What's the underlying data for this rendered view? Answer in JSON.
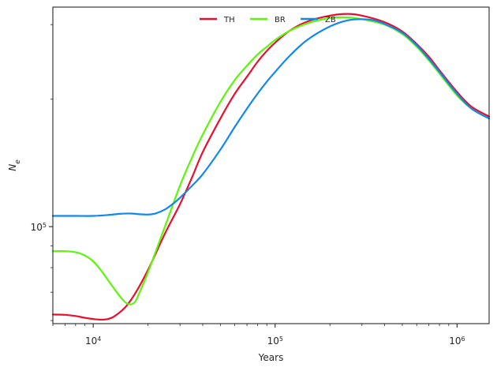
{
  "chart_data": {
    "type": "line",
    "xlabel": "Years",
    "ylabel": "N",
    "ylabel_subscript": "e",
    "xscale": "log",
    "yscale": "log",
    "xlim": [
      6000,
      1500000
    ],
    "ylim": [
      59000,
      330000
    ],
    "grid": false,
    "legend": "top-center",
    "x_ticks": [
      {
        "value": 10000,
        "base": "10",
        "exp": "4"
      },
      {
        "value": 100000,
        "base": "10",
        "exp": "5"
      },
      {
        "value": 1000000,
        "base": "10",
        "exp": "6"
      }
    ],
    "y_ticks": [
      {
        "value": 100000,
        "base": "10",
        "exp": "5"
      }
    ],
    "series": [
      {
        "name": "TH",
        "color": "#e8102e",
        "x": [
          6000,
          7000,
          8000,
          9000,
          10000,
          11000,
          12000,
          13000,
          15000,
          17000,
          20000,
          25000,
          30000,
          35000,
          40000,
          50000,
          60000,
          70000,
          80000,
          90000,
          100000,
          120000,
          150000,
          200000,
          250000,
          300000,
          400000,
          500000,
          600000,
          700000,
          800000,
          1000000,
          1200000,
          1500000
        ],
        "y": [
          62000,
          61900,
          61500,
          60900,
          60500,
          60300,
          60500,
          61300,
          64500,
          69500,
          79000,
          97000,
          113000,
          131000,
          150000,
          180000,
          206000,
          226000,
          245000,
          260000,
          272000,
          290000,
          305000,
          315000,
          318000,
          315000,
          304000,
          289000,
          270000,
          252000,
          234000,
          208000,
          192000,
          182000
        ]
      },
      {
        "name": "BR",
        "color": "#5df50a",
        "x": [
          6000,
          7000,
          8000,
          9000,
          10000,
          11000,
          12000,
          13000,
          14000,
          15000,
          16000,
          17000,
          18000,
          20000,
          25000,
          30000,
          35000,
          40000,
          50000,
          60000,
          70000,
          80000,
          90000,
          100000,
          120000,
          150000,
          200000,
          250000,
          300000,
          400000,
          500000,
          600000,
          700000,
          800000,
          1000000,
          1200000,
          1500000
        ],
        "y": [
          87500,
          87500,
          87000,
          85500,
          82800,
          79000,
          75000,
          71500,
          68500,
          66300,
          65500,
          66500,
          70000,
          78000,
          101000,
          125000,
          146000,
          165000,
          197000,
          222000,
          240000,
          255000,
          266000,
          276000,
          290000,
          302000,
          311000,
          312000,
          309000,
          300000,
          285000,
          266000,
          247000,
          230000,
          204000,
          190000,
          180000
        ]
      },
      {
        "name": "ZB",
        "color": "#1188ee",
        "x": [
          6000,
          8000,
          10000,
          12000,
          14000,
          16000,
          18000,
          20000,
          22000,
          25000,
          28000,
          30000,
          35000,
          40000,
          50000,
          60000,
          70000,
          80000,
          90000,
          100000,
          120000,
          150000,
          200000,
          250000,
          300000,
          350000,
          400000,
          500000,
          600000,
          700000,
          800000,
          1000000,
          1200000,
          1500000
        ],
        "y": [
          106000,
          106000,
          106000,
          106500,
          107200,
          107400,
          107000,
          106800,
          107400,
          110000,
          114000,
          117000,
          125000,
          133000,
          152000,
          172000,
          190000,
          206000,
          220000,
          232000,
          253000,
          276000,
          297000,
          307000,
          309000,
          307000,
          301000,
          287000,
          268000,
          249000,
          232000,
          206000,
          190000,
          180000
        ]
      }
    ]
  }
}
